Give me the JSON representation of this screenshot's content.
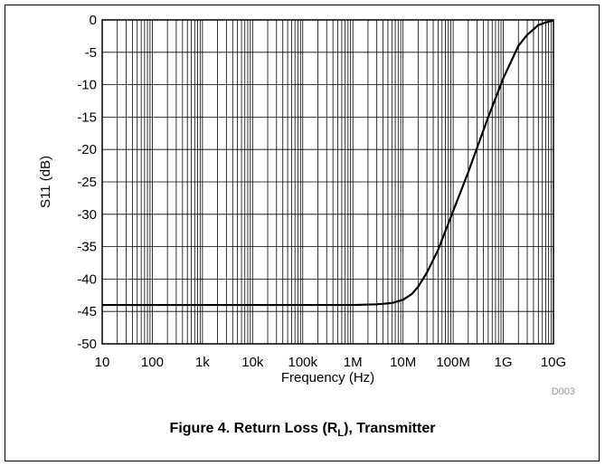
{
  "chart_data": {
    "type": "line",
    "xscale": "log",
    "xlim": [
      10,
      10000000000
    ],
    "ylim": [
      -50,
      0
    ],
    "xlabel": "Frequency (Hz)",
    "ylabel": "S11 (dB)",
    "x_tick_labels": [
      "10",
      "100",
      "1k",
      "10k",
      "100k",
      "1M",
      "10M",
      "100M",
      "1G",
      "10G"
    ],
    "y_tick_labels": [
      "0",
      "-5",
      "-10",
      "-15",
      "-20",
      "-25",
      "-30",
      "-35",
      "-40",
      "-45",
      "-50"
    ],
    "y_ticks": [
      0,
      -5,
      -10,
      -15,
      -20,
      -25,
      -30,
      -35,
      -40,
      -45,
      -50
    ],
    "grid": true,
    "series": [
      {
        "x": [
          10,
          100,
          1000,
          10000,
          100000,
          1000000,
          3000000,
          6000000,
          10000000,
          15000000,
          20000000,
          30000000,
          50000000,
          100000000,
          200000000,
          500000000,
          1000000000,
          2000000000,
          3000000000,
          5000000000,
          7000000000,
          10000000000
        ],
        "y": [
          -44,
          -44,
          -44,
          -44,
          -44,
          -44,
          -43.9,
          -43.7,
          -43.2,
          -42.3,
          -41.2,
          -39,
          -35.5,
          -29.5,
          -23.5,
          -15,
          -9,
          -4,
          -2.3,
          -0.8,
          -0.4,
          -0.1
        ]
      }
    ]
  },
  "figure_code": "D003",
  "caption": {
    "prefix": "Figure 4. Return Loss (R",
    "subscript": "L",
    "suffix": "), Transmitter"
  }
}
